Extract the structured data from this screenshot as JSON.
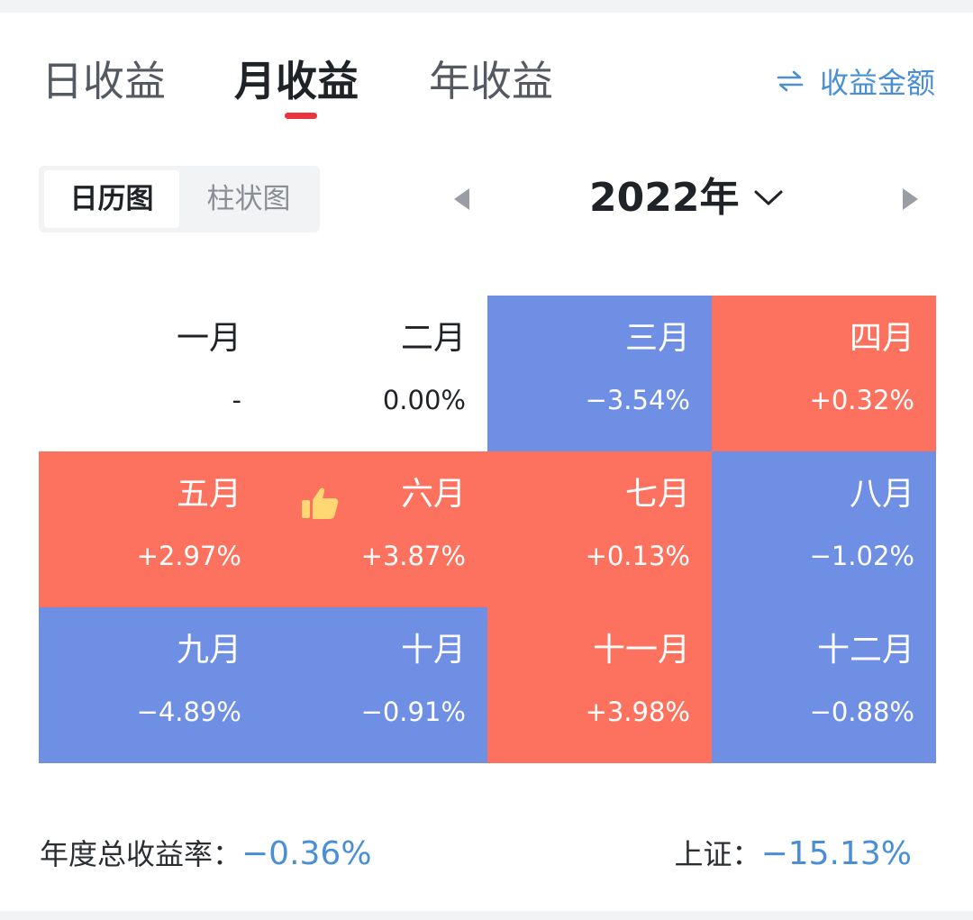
{
  "tabs": {
    "day": "日收益",
    "month": "月收益",
    "year": "年收益",
    "active": "月收益"
  },
  "toggle": {
    "label": "收益金额",
    "icon": "swap-arrows-icon"
  },
  "view_switch": {
    "calendar": "日历图",
    "bar": "柱状图",
    "active": "日历图"
  },
  "year_selector": {
    "label": "2022年"
  },
  "months": [
    {
      "name": "一月",
      "value": "-",
      "status": "none"
    },
    {
      "name": "二月",
      "value": "0.00%",
      "status": "flat"
    },
    {
      "name": "三月",
      "value": "−3.54%",
      "status": "down"
    },
    {
      "name": "四月",
      "value": "+0.32%",
      "status": "up"
    },
    {
      "name": "五月",
      "value": "+2.97%",
      "status": "up"
    },
    {
      "name": "六月",
      "value": "+3.87%",
      "status": "up"
    },
    {
      "name": "七月",
      "value": "+0.13%",
      "status": "up"
    },
    {
      "name": "八月",
      "value": "−1.02%",
      "status": "down"
    },
    {
      "name": "九月",
      "value": "−4.89%",
      "status": "down"
    },
    {
      "name": "十月",
      "value": "−0.91%",
      "status": "down"
    },
    {
      "name": "十一月",
      "value": "+3.98%",
      "status": "up"
    },
    {
      "name": "十二月",
      "value": "−0.88%",
      "status": "down"
    }
  ],
  "best_month_icon": "thumbs-up-icon",
  "summary": {
    "annual_label": "年度总收益率：",
    "annual_value": "−0.36%",
    "index_label": "上证：",
    "index_value": "−15.13%"
  },
  "colors": {
    "up": "#fd725e",
    "down": "#6f8fe4",
    "accent": "#4a8fd6",
    "tab_indicator": "#e8343a"
  }
}
